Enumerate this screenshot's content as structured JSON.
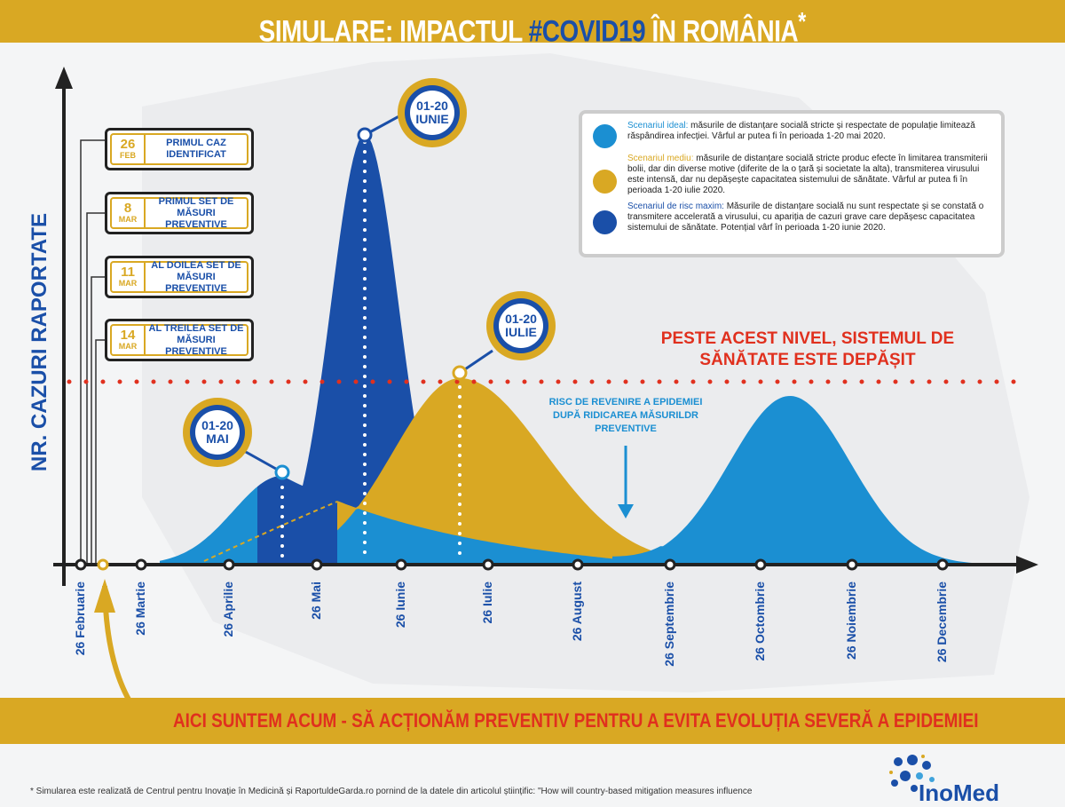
{
  "title": {
    "part1": "SIMULARE: IMPACTUL ",
    "highlight": "#COVID19",
    "part2": " ÎN ROMÂNIA",
    "asterisk": "*"
  },
  "colors": {
    "gold": "#d9a823",
    "dark_blue": "#1a4fa8",
    "light_blue": "#1b8fd2",
    "red": "#e0301e"
  },
  "y_axis_label": "NR. CAZURI RAPORTATE",
  "events": [
    {
      "day": "26",
      "month": "FEB",
      "label": "PRIMUL CAZ IDENTIFICAT"
    },
    {
      "day": "8",
      "month": "MAR",
      "label": "PRIMUL SET DE MĂSURI PREVENTIVE"
    },
    {
      "day": "11",
      "month": "MAR",
      "label": "AL DOILEA SET DE MĂSURI PREVENTIVE"
    },
    {
      "day": "14",
      "month": "MAR",
      "label": "AL TREILEA SET DE MĂSURI PREVENTIVE"
    }
  ],
  "legend": [
    {
      "title": "Scenariul ideal:",
      "text": " măsurile de distanțare socială stricte și respectate de populație limitează răspândirea infecției. Vârful ar putea fi în perioada 1-20 mai 2020.",
      "color": "#1b8fd2"
    },
    {
      "title": "Scenariul mediu:",
      "text": " măsurile de distanțare socială stricte produc efecte în limitarea transmiterii bolii, dar din diverse motive (diferite de la o țară și societate la alta), transmiterea virusului este intensă, dar nu depășește capacitatea sistemului de sănătate. Vârful ar putea fi în perioada 1-20 iulie 2020.",
      "color": "#d9a823"
    },
    {
      "title": "Scenariul de risc maxim:",
      "text": " Măsurile de distanțare socială nu sunt respectate și se constată o transmitere accelerată a virusului, cu apariția de cazuri grave care depășesc capacitatea sistemului de sănătate. Potențial vârf în perioada 1-20 iunie 2020.",
      "color": "#1a4fa8"
    }
  ],
  "callouts": {
    "iunie": {
      "range": "01-20",
      "month": "IUNIE"
    },
    "iulie": {
      "range": "01-20",
      "month": "IULIE"
    },
    "mai": {
      "range": "01-20",
      "month": "MAI"
    }
  },
  "threshold_label": "PESTE ACEST NIVEL, SISTEMUL DE SĂNĂTATE ESTE DEPĂȘIT",
  "risk_label": "RISC DE REVENIRE A EPIDEMIEI DUPĂ RIDICAREA MĂSURILDR PREVENTIVE",
  "chart_data": {
    "type": "area",
    "x_tick_labels": [
      "26 Februarie",
      "26 Martie",
      "26 Aprilie",
      "26 Mai",
      "26 Iunie",
      "26 Iulie",
      "26 August",
      "26 Septembrie",
      "26 Octombrie",
      "26 Noiembrie",
      "26 Decembrie"
    ],
    "ylabel": "NR. CAZURI RAPORTATE",
    "y_ticks": "none",
    "threshold_line": "dotted red, above the peak of the medium scenario",
    "series": [
      {
        "name": "Scenariul de risc maxim",
        "peak": "01-20 IUNIE",
        "color": "#1a4fa8",
        "exceeds_threshold": true
      },
      {
        "name": "Scenariul mediu",
        "peak": "01-20 IULIE",
        "color": "#d9a823",
        "exceeds_threshold": false
      },
      {
        "name": "Scenariul ideal",
        "peak": "01-20 MAI",
        "color": "#1b8fd2",
        "exceeds_threshold": false,
        "second_wave": "Octombrie"
      }
    ]
  },
  "bottom_banner": "AICI SUNTEM ACUM - SĂ ACȚIONĂM PREVENTIV PENTRU A EVITA EVOLUȚIA SEVERĂ A EPIDEMIEI",
  "footnote": "* Simularea este realizată de Centrul pentru Inovație în Medicină și RaportuldeGarda.ro pornind de la datele din articolul științific: \"How will country-based mitigation measures influence",
  "logo": "InoMed"
}
